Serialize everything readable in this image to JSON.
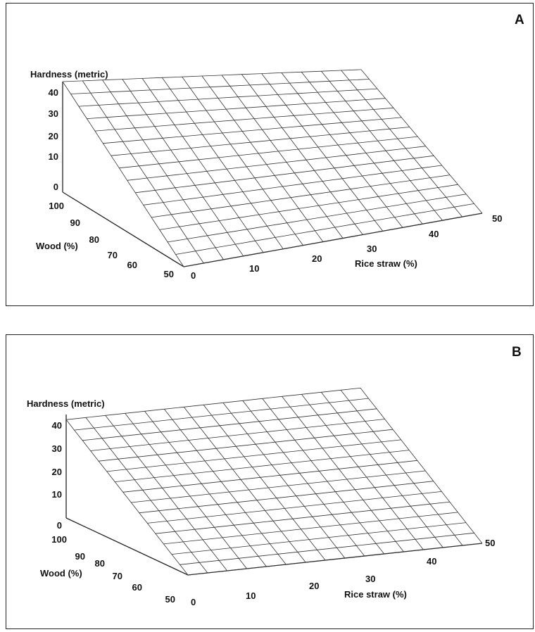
{
  "chart_data": [
    {
      "type": "surface",
      "panel_label": "A",
      "zlabel": "Hardness (metric)",
      "ylabel": "Wood (%)",
      "xlabel": "Rice straw (%)",
      "z_ticks": [
        "0",
        "10",
        "20",
        "30",
        "40"
      ],
      "y_ticks": [
        "100",
        "90",
        "80",
        "70",
        "60",
        "50"
      ],
      "x_ticks": [
        "0",
        "10",
        "20",
        "30",
        "40",
        "50"
      ],
      "xlim": [
        0,
        50
      ],
      "ylim": [
        50,
        100
      ],
      "zlim": [
        0,
        40
      ],
      "grid_divisions": 15,
      "surface_corners": [
        {
          "x": 0,
          "wood": 100,
          "z": 40
        },
        {
          "x": 50,
          "wood": 100,
          "z": 25
        },
        {
          "x": 50,
          "wood": 50,
          "z": 0
        },
        {
          "x": 0,
          "wood": 50,
          "z": 0
        }
      ]
    },
    {
      "type": "surface",
      "panel_label": "B",
      "zlabel": "Hardness (metric)",
      "ylabel": "Wood (%)",
      "xlabel": "Rice straw (%)",
      "z_ticks": [
        "0",
        "10",
        "20",
        "30",
        "40"
      ],
      "y_ticks": [
        "100",
        "90",
        "80",
        "70",
        "60",
        "50"
      ],
      "x_ticks": [
        "0",
        "10",
        "20",
        "30",
        "40",
        "50"
      ],
      "xlim": [
        0,
        50
      ],
      "ylim": [
        50,
        100
      ],
      "zlim": [
        0,
        40
      ],
      "grid_divisions": 15,
      "surface_corners": [
        {
          "x": 0,
          "wood": 100,
          "z": 38
        },
        {
          "x": 50,
          "wood": 100,
          "z": 38
        },
        {
          "x": 50,
          "wood": 50,
          "z": 0
        },
        {
          "x": 0,
          "wood": 50,
          "z": 0
        }
      ]
    }
  ]
}
